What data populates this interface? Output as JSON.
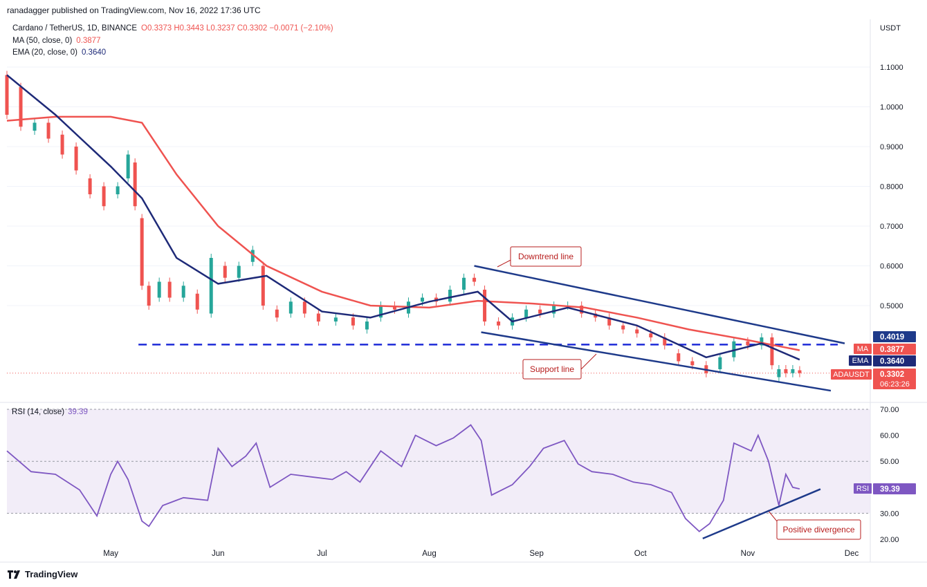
{
  "publisher_line": "ranadagger published on TradingView.com, Nov 16, 2022 17:36 UTC",
  "legend": {
    "symbol": "Cardano / TetherUS, 1D, BINANCE",
    "ohlc": "O0.3373  H0.3443  L0.3237  C0.3302  −0.0071 (−2.10%)",
    "ma_label": "MA (50, close, 0)",
    "ma_value": "0.3877",
    "ema_label": "EMA (20, close, 0)",
    "ema_value": "0.3640"
  },
  "rsi_legend": {
    "label": "RSI (14, close)",
    "value": "39.39"
  },
  "footer": {
    "brand": "TradingView",
    "icon": "tradingview-logo-icon"
  },
  "colors": {
    "up": "#26a69a",
    "down": "#ef5350",
    "ma": "#ef5350",
    "ema": "#1e2a78",
    "rsi": "#7e57c2",
    "trend": "#1e3a8a",
    "support_dash": "#1d2ad8",
    "annotation_border": "#b71c1c"
  },
  "chart_data": [
    {
      "type": "candlestick",
      "title": "Cardano / TetherUS, 1D, BINANCE",
      "unit_label": "USDT",
      "y_ticks": [
        "1.1000",
        "1.0000",
        "0.9000",
        "0.8000",
        "0.7000",
        "0.6000",
        "0.5000"
      ],
      "x_ticks": [
        "May",
        "Jun",
        "Jul",
        "Aug",
        "Sep",
        "Oct",
        "Nov",
        "Dec"
      ],
      "ylim": [
        0.25,
        1.12
      ],
      "last_ohlc": {
        "open": 0.3373,
        "high": 0.3443,
        "low": 0.3237,
        "close": 0.3302,
        "change": -0.0071,
        "change_pct": -2.1
      },
      "price_labels": [
        {
          "name": "",
          "value": "0.4019"
        },
        {
          "name": "MA",
          "value": "0.3877"
        },
        {
          "name": "EMA",
          "value": "0.3640"
        },
        {
          "name": "ADAUSDT",
          "value": "0.3302",
          "countdown": "06:23:26"
        }
      ],
      "ma50": [
        [
          "2022-04-01",
          0.965
        ],
        [
          "2022-04-15",
          0.975
        ],
        [
          "2022-05-01",
          0.975
        ],
        [
          "2022-05-10",
          0.96
        ],
        [
          "2022-05-20",
          0.83
        ],
        [
          "2022-06-01",
          0.7
        ],
        [
          "2022-06-15",
          0.6
        ],
        [
          "2022-07-01",
          0.535
        ],
        [
          "2022-07-15",
          0.5
        ],
        [
          "2022-08-01",
          0.495
        ],
        [
          "2022-08-15",
          0.512
        ],
        [
          "2022-08-31",
          0.505
        ],
        [
          "2022-09-15",
          0.495
        ],
        [
          "2022-09-30",
          0.47
        ],
        [
          "2022-10-15",
          0.44
        ],
        [
          "2022-10-31",
          0.415
        ],
        [
          "2022-11-16",
          0.3877
        ]
      ],
      "ema20": [
        [
          "2022-04-01",
          1.08
        ],
        [
          "2022-04-15",
          0.98
        ],
        [
          "2022-05-01",
          0.85
        ],
        [
          "2022-05-10",
          0.77
        ],
        [
          "2022-05-20",
          0.62
        ],
        [
          "2022-06-01",
          0.555
        ],
        [
          "2022-06-15",
          0.575
        ],
        [
          "2022-07-01",
          0.485
        ],
        [
          "2022-07-15",
          0.47
        ],
        [
          "2022-08-01",
          0.51
        ],
        [
          "2022-08-15",
          0.535
        ],
        [
          "2022-08-25",
          0.46
        ],
        [
          "2022-09-10",
          0.495
        ],
        [
          "2022-09-30",
          0.45
        ],
        [
          "2022-10-20",
          0.37
        ],
        [
          "2022-11-05",
          0.405
        ],
        [
          "2022-11-16",
          0.364
        ]
      ],
      "candles": [
        [
          "2022-04-01",
          1.08,
          0.98
        ],
        [
          "2022-04-05",
          1.05,
          0.95
        ],
        [
          "2022-04-09",
          0.94,
          0.96
        ],
        [
          "2022-04-13",
          0.96,
          0.92
        ],
        [
          "2022-04-17",
          0.93,
          0.88
        ],
        [
          "2022-04-21",
          0.9,
          0.84
        ],
        [
          "2022-04-25",
          0.82,
          0.78
        ],
        [
          "2022-04-29",
          0.8,
          0.75
        ],
        [
          "2022-05-03",
          0.78,
          0.8
        ],
        [
          "2022-05-06",
          0.82,
          0.88
        ],
        [
          "2022-05-08",
          0.86,
          0.75
        ],
        [
          "2022-05-10",
          0.72,
          0.55
        ],
        [
          "2022-05-12",
          0.55,
          0.5
        ],
        [
          "2022-05-15",
          0.52,
          0.56
        ],
        [
          "2022-05-18",
          0.56,
          0.52
        ],
        [
          "2022-05-22",
          0.52,
          0.55
        ],
        [
          "2022-05-26",
          0.53,
          0.49
        ],
        [
          "2022-05-30",
          0.48,
          0.62
        ],
        [
          "2022-06-03",
          0.6,
          0.57
        ],
        [
          "2022-06-07",
          0.57,
          0.6
        ],
        [
          "2022-06-11",
          0.61,
          0.64
        ],
        [
          "2022-06-14",
          0.6,
          0.5
        ],
        [
          "2022-06-18",
          0.49,
          0.47
        ],
        [
          "2022-06-22",
          0.48,
          0.51
        ],
        [
          "2022-06-26",
          0.51,
          0.48
        ],
        [
          "2022-06-30",
          0.48,
          0.46
        ],
        [
          "2022-07-05",
          0.46,
          0.47
        ],
        [
          "2022-07-10",
          0.47,
          0.45
        ],
        [
          "2022-07-14",
          0.44,
          0.46
        ],
        [
          "2022-07-18",
          0.47,
          0.5
        ],
        [
          "2022-07-22",
          0.5,
          0.49
        ],
        [
          "2022-07-26",
          0.48,
          0.51
        ],
        [
          "2022-07-30",
          0.51,
          0.52
        ],
        [
          "2022-08-03",
          0.52,
          0.51
        ],
        [
          "2022-08-07",
          0.51,
          0.54
        ],
        [
          "2022-08-11",
          0.54,
          0.57
        ],
        [
          "2022-08-14",
          0.57,
          0.56
        ],
        [
          "2022-08-17",
          0.54,
          0.46
        ],
        [
          "2022-08-21",
          0.46,
          0.45
        ],
        [
          "2022-08-25",
          0.45,
          0.47
        ],
        [
          "2022-08-29",
          0.47,
          0.49
        ],
        [
          "2022-09-02",
          0.49,
          0.48
        ],
        [
          "2022-09-06",
          0.48,
          0.5
        ],
        [
          "2022-09-10",
          0.5,
          0.5
        ],
        [
          "2022-09-14",
          0.5,
          0.48
        ],
        [
          "2022-09-18",
          0.48,
          0.47
        ],
        [
          "2022-09-22",
          0.47,
          0.45
        ],
        [
          "2022-09-26",
          0.45,
          0.44
        ],
        [
          "2022-09-30",
          0.44,
          0.43
        ],
        [
          "2022-10-04",
          0.43,
          0.42
        ],
        [
          "2022-10-08",
          0.42,
          0.4
        ],
        [
          "2022-10-12",
          0.38,
          0.36
        ],
        [
          "2022-10-16",
          0.36,
          0.35
        ],
        [
          "2022-10-20",
          0.35,
          0.33
        ],
        [
          "2022-10-24",
          0.34,
          0.37
        ],
        [
          "2022-10-28",
          0.37,
          0.41
        ],
        [
          "2022-11-01",
          0.41,
          0.4
        ],
        [
          "2022-11-05",
          0.4,
          0.42
        ],
        [
          "2022-11-08",
          0.42,
          0.35
        ],
        [
          "2022-11-10",
          0.32,
          0.34
        ],
        [
          "2022-11-12",
          0.34,
          0.33
        ],
        [
          "2022-11-14",
          0.33,
          0.34
        ],
        [
          "2022-11-16",
          0.3373,
          0.3302
        ]
      ],
      "annotations": [
        {
          "text": "Downtrend line",
          "start": [
            "2022-08-14",
            0.6
          ],
          "end": [
            "2022-11-29",
            0.405
          ]
        },
        {
          "text": "Support line",
          "start": [
            "2022-08-16",
            0.433
          ],
          "end": [
            "2022-11-25",
            0.286
          ]
        },
        {
          "text": "",
          "kind": "horizontal-dashed",
          "value": 0.4019,
          "start": "2022-05-09",
          "end": "2022-11-27"
        }
      ]
    },
    {
      "type": "line",
      "title": "RSI (14, close)",
      "series": [
        {
          "name": "",
          "values": [
            [
              "2022-04-01",
              54
            ],
            [
              "2022-04-08",
              46
            ],
            [
              "2022-04-15",
              45
            ],
            [
              "2022-04-22",
              39
            ],
            [
              "2022-04-27",
              29
            ],
            [
              "2022-05-01",
              45
            ],
            [
              "2022-05-03",
              50
            ],
            [
              "2022-05-06",
              43
            ],
            [
              "2022-05-10",
              27
            ],
            [
              "2022-05-12",
              25
            ],
            [
              "2022-05-16",
              33
            ],
            [
              "2022-05-22",
              36
            ],
            [
              "2022-05-29",
              35
            ],
            [
              "2022-06-01",
              55
            ],
            [
              "2022-06-05",
              48
            ],
            [
              "2022-06-09",
              52
            ],
            [
              "2022-06-12",
              57
            ],
            [
              "2022-06-16",
              40
            ],
            [
              "2022-06-22",
              45
            ],
            [
              "2022-06-28",
              44
            ],
            [
              "2022-07-04",
              43
            ],
            [
              "2022-07-08",
              46
            ],
            [
              "2022-07-12",
              42
            ],
            [
              "2022-07-18",
              54
            ],
            [
              "2022-07-24",
              48
            ],
            [
              "2022-07-28",
              60
            ],
            [
              "2022-08-03",
              56
            ],
            [
              "2022-08-08",
              59
            ],
            [
              "2022-08-13",
              64
            ],
            [
              "2022-08-16",
              58
            ],
            [
              "2022-08-19",
              37
            ],
            [
              "2022-08-25",
              41
            ],
            [
              "2022-08-30",
              48
            ],
            [
              "2022-09-03",
              55
            ],
            [
              "2022-09-09",
              58
            ],
            [
              "2022-09-13",
              49
            ],
            [
              "2022-09-17",
              46
            ],
            [
              "2022-09-23",
              45
            ],
            [
              "2022-09-29",
              42
            ],
            [
              "2022-10-04",
              41
            ],
            [
              "2022-10-10",
              38
            ],
            [
              "2022-10-14",
              28
            ],
            [
              "2022-10-18",
              23
            ],
            [
              "2022-10-21",
              26
            ],
            [
              "2022-10-25",
              35
            ],
            [
              "2022-10-28",
              57
            ],
            [
              "2022-11-02",
              54
            ],
            [
              "2022-11-04",
              60
            ],
            [
              "2022-11-07",
              50
            ],
            [
              "2022-11-10",
              33
            ],
            [
              "2022-11-12",
              45
            ],
            [
              "2022-11-14",
              40
            ],
            [
              "2022-11-16",
              39.39
            ]
          ]
        }
      ],
      "y_ticks": [
        "70.00",
        "60.00",
        "50.00",
        "30.00",
        "20.00"
      ],
      "ylim": [
        18,
        72
      ],
      "bands": {
        "upper": 70,
        "mid": 50,
        "lower": 30
      },
      "price_labels": [
        {
          "name": "RSI",
          "value": "39.39"
        }
      ],
      "annotations": [
        {
          "text": "Positive divergence",
          "start": [
            "2022-10-19",
            20.3
          ],
          "end": [
            "2022-11-22",
            39.3
          ]
        }
      ]
    }
  ]
}
